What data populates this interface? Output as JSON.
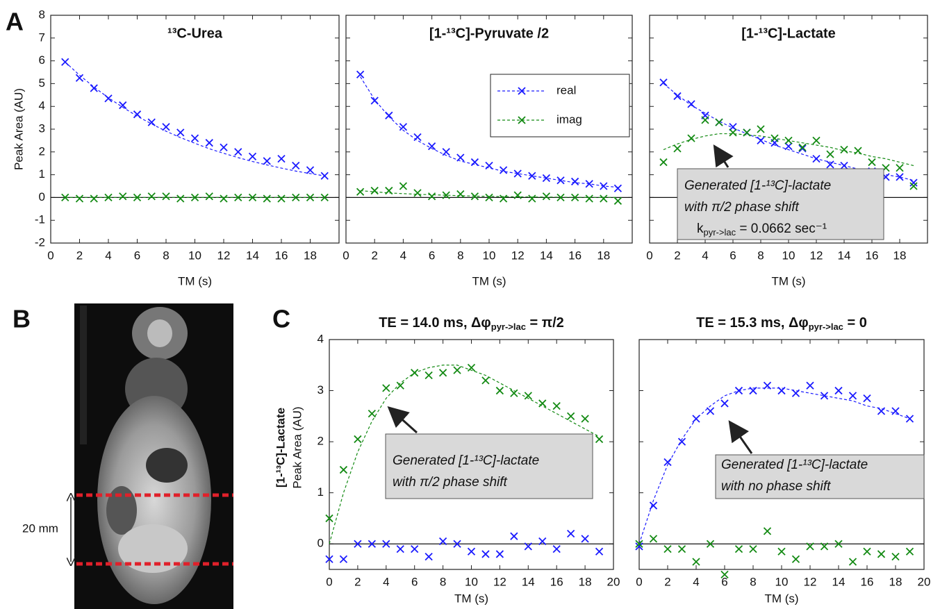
{
  "panel_labels": [
    "A",
    "B",
    "C"
  ],
  "panel_b": {
    "scale_label": "20 mm"
  },
  "chart_data": [
    {
      "type": "scatter",
      "title": "¹³C-Urea",
      "xlabel": "TM (s)",
      "ylabel": "Peak Area (AU)",
      "x": [
        1,
        2,
        3,
        4,
        5,
        6,
        7,
        8,
        9,
        10,
        11,
        12,
        13,
        14,
        15,
        16,
        17,
        18,
        19
      ],
      "xlim": [
        0,
        20
      ],
      "xticks": [
        0,
        2,
        4,
        6,
        8,
        10,
        12,
        14,
        16,
        18
      ],
      "ylim": [
        -2,
        8
      ],
      "yticks": [
        -2,
        -1,
        0,
        1,
        2,
        3,
        4,
        5,
        6,
        7,
        8
      ],
      "ytick_labels": true,
      "zero_line": true,
      "series": [
        {
          "color": "#1a1aff",
          "values": [
            5.95,
            5.25,
            4.8,
            4.35,
            4.05,
            3.65,
            3.3,
            3.1,
            2.85,
            2.6,
            2.4,
            2.2,
            2.0,
            1.8,
            1.6,
            1.7,
            1.4,
            1.2,
            0.95
          ],
          "fit": [
            5.95,
            5.37,
            4.85,
            4.38,
            3.96,
            3.57,
            3.23,
            2.91,
            2.63,
            2.38,
            2.14,
            1.94,
            1.75,
            1.58,
            1.43,
            1.29,
            1.16,
            1.05,
            0.95
          ]
        },
        {
          "color": "#138a13",
          "values": [
            0,
            -0.05,
            -0.05,
            0,
            0.05,
            0,
            0.05,
            0.05,
            -0.05,
            0,
            0.05,
            -0.05,
            0,
            0,
            -0.05,
            -0.05,
            0,
            0,
            0
          ],
          "fit": [
            0,
            0,
            0,
            0,
            0,
            0,
            0,
            0,
            0,
            0,
            0,
            0,
            0,
            0,
            0,
            0,
            0,
            0,
            0
          ]
        }
      ]
    },
    {
      "type": "scatter",
      "title": "[1-¹³C]-Pyruvate /2",
      "xlabel": "TM (s)",
      "x": [
        1,
        2,
        3,
        4,
        5,
        6,
        7,
        8,
        9,
        10,
        11,
        12,
        13,
        14,
        15,
        16,
        17,
        18,
        19
      ],
      "xlim": [
        0,
        20
      ],
      "xticks": [
        0,
        2,
        4,
        6,
        8,
        10,
        12,
        14,
        16,
        18
      ],
      "ylim": [
        -2,
        8
      ],
      "yticks": [
        -2,
        -1,
        0,
        1,
        2,
        3,
        4,
        5,
        6,
        7,
        8
      ],
      "ytick_labels": false,
      "zero_line": true,
      "legend": "upper right",
      "series": [
        {
          "name": "real",
          "color": "#1a1aff",
          "values": [
            5.4,
            4.25,
            3.6,
            3.1,
            2.65,
            2.25,
            2.0,
            1.75,
            1.55,
            1.4,
            1.2,
            1.05,
            0.95,
            0.85,
            0.75,
            0.7,
            0.6,
            0.5,
            0.4
          ],
          "fit": [
            5.3,
            4.3,
            3.55,
            2.95,
            2.5,
            2.15,
            1.85,
            1.6,
            1.45,
            1.3,
            1.15,
            1.05,
            0.95,
            0.85,
            0.75,
            0.65,
            0.6,
            0.5,
            0.45
          ]
        },
        {
          "name": "imag",
          "color": "#138a13",
          "values": [
            0.25,
            0.3,
            0.3,
            0.5,
            0.2,
            0.05,
            0.1,
            0.15,
            0.05,
            0,
            -0.05,
            0.1,
            -0.05,
            0.05,
            0,
            0,
            -0.05,
            -0.05,
            -0.15
          ],
          "fit": [
            0.3,
            0.25,
            0.2,
            0.17,
            0.14,
            0.12,
            0.1,
            0.08,
            0.06,
            0.05,
            0.04,
            0.03,
            0.02,
            0.02,
            0.01,
            0.01,
            0,
            0,
            0
          ]
        }
      ]
    },
    {
      "type": "scatter",
      "title": "[1-¹³C]-Lactate",
      "xlabel": "TM (s)",
      "x": [
        1,
        2,
        3,
        4,
        5,
        6,
        7,
        8,
        9,
        10,
        11,
        12,
        13,
        14,
        15,
        16,
        17,
        18,
        19
      ],
      "xlim": [
        0,
        20
      ],
      "xticks": [
        0,
        2,
        4,
        6,
        8,
        10,
        12,
        14,
        16,
        18
      ],
      "ylim": [
        -2,
        8
      ],
      "yticks": [
        -2,
        -1,
        0,
        1,
        2,
        3,
        4,
        5,
        6,
        7,
        8
      ],
      "ytick_labels": false,
      "zero_line": true,
      "annotation": [
        "Generated [1-¹³C]-lactate",
        "with π/2 phase shift",
        {
          "text": "k",
          "sub": "pyr->lac",
          "tail": " = 0.0662 sec⁻¹"
        }
      ],
      "series": [
        {
          "color": "#1a1aff",
          "values": [
            5.05,
            4.45,
            4.1,
            3.6,
            3.3,
            3.1,
            2.85,
            2.5,
            2.4,
            2.25,
            2.15,
            1.7,
            1.45,
            1.4,
            1.1,
            1.15,
            0.9,
            0.9,
            0.65
          ],
          "fit": [
            5.0,
            4.5,
            4.05,
            3.7,
            3.35,
            3.05,
            2.8,
            2.55,
            2.3,
            2.1,
            1.9,
            1.7,
            1.55,
            1.4,
            1.25,
            1.1,
            1.0,
            0.9,
            0.75
          ]
        },
        {
          "color": "#138a13",
          "values": [
            1.55,
            2.15,
            2.6,
            3.4,
            3.3,
            2.85,
            2.85,
            3.0,
            2.6,
            2.5,
            2.2,
            2.5,
            1.9,
            2.1,
            2.05,
            1.55,
            1.3,
            1.3,
            0.5
          ],
          "fit": [
            2.1,
            2.35,
            2.55,
            2.7,
            2.8,
            2.8,
            2.75,
            2.7,
            2.6,
            2.5,
            2.4,
            2.3,
            2.2,
            2.05,
            1.95,
            1.8,
            1.7,
            1.55,
            1.4
          ]
        }
      ]
    },
    {
      "type": "scatter",
      "title": {
        "text": "TE = 14.0 ms, Δφ",
        "sub": "pyr->lac",
        "tail": " = π/2"
      },
      "xlabel": "TM (s)",
      "ylabel": [
        "[1-¹³C]-Lactate",
        "Peak Area (AU)"
      ],
      "x": [
        0,
        1,
        2,
        3,
        4,
        5,
        6,
        7,
        8,
        9,
        10,
        11,
        12,
        13,
        14,
        15,
        16,
        17,
        18,
        19
      ],
      "xlim": [
        0,
        20
      ],
      "xticks": [
        0,
        2,
        4,
        6,
        8,
        10,
        12,
        14,
        16,
        18,
        20
      ],
      "ylim": [
        -0.5,
        4
      ],
      "yticks": [
        0,
        1,
        2,
        3,
        4
      ],
      "ytick_labels": true,
      "zero_line": true,
      "annotation": [
        "Generated [1-¹³C]-lactate",
        "with π/2 phase shift"
      ],
      "series": [
        {
          "color": "#1a1aff",
          "values": [
            -0.3,
            -0.3,
            0,
            0,
            0,
            -0.1,
            -0.1,
            -0.25,
            0.05,
            0,
            -0.15,
            -0.2,
            -0.2,
            0.15,
            -0.05,
            0.05,
            -0.1,
            0.2,
            0.1,
            -0.15
          ]
        },
        {
          "color": "#138a13",
          "values": [
            0.5,
            1.45,
            2.05,
            2.55,
            3.05,
            3.1,
            3.35,
            3.3,
            3.35,
            3.4,
            3.45,
            3.2,
            3.0,
            2.95,
            2.9,
            2.75,
            2.7,
            2.5,
            2.45,
            2.05
          ],
          "fit": [
            0,
            1.0,
            1.8,
            2.4,
            2.85,
            3.15,
            3.35,
            3.45,
            3.5,
            3.5,
            3.4,
            3.3,
            3.15,
            3.0,
            2.85,
            2.7,
            2.55,
            2.4,
            2.25,
            2.1
          ]
        }
      ]
    },
    {
      "type": "scatter",
      "title": {
        "text": "TE = 15.3 ms, Δφ",
        "sub": "pyr->lac",
        "tail": " = 0"
      },
      "xlabel": "TM (s)",
      "x": [
        0,
        1,
        2,
        3,
        4,
        5,
        6,
        7,
        8,
        9,
        10,
        11,
        12,
        13,
        14,
        15,
        16,
        17,
        18,
        19
      ],
      "xlim": [
        0,
        20
      ],
      "xticks": [
        0,
        2,
        4,
        6,
        8,
        10,
        12,
        14,
        16,
        18,
        20
      ],
      "ylim": [
        -0.5,
        4
      ],
      "yticks": [
        0,
        1,
        2,
        3,
        4
      ],
      "ytick_labels": false,
      "zero_line": true,
      "annotation": [
        "Generated [1-¹³C]-lactate",
        "with no phase shift"
      ],
      "series": [
        {
          "color": "#1a1aff",
          "values": [
            -0.05,
            0.75,
            1.6,
            2.0,
            2.45,
            2.6,
            2.75,
            3.0,
            3.0,
            3.1,
            3.0,
            2.95,
            3.1,
            2.9,
            3.0,
            2.9,
            2.85,
            2.6,
            2.6,
            2.45
          ],
          "fit": [
            0,
            0.85,
            1.55,
            2.05,
            2.45,
            2.7,
            2.9,
            3.0,
            3.05,
            3.05,
            3.05,
            3.0,
            2.95,
            2.9,
            2.85,
            2.8,
            2.7,
            2.65,
            2.55,
            2.45
          ]
        },
        {
          "color": "#138a13",
          "values": [
            0,
            0.1,
            -0.1,
            -0.1,
            -0.35,
            0,
            -0.6,
            -0.1,
            -0.1,
            0.25,
            -0.15,
            -0.3,
            -0.05,
            -0.05,
            0,
            -0.35,
            -0.15,
            -0.2,
            -0.25,
            -0.15
          ]
        }
      ]
    }
  ]
}
